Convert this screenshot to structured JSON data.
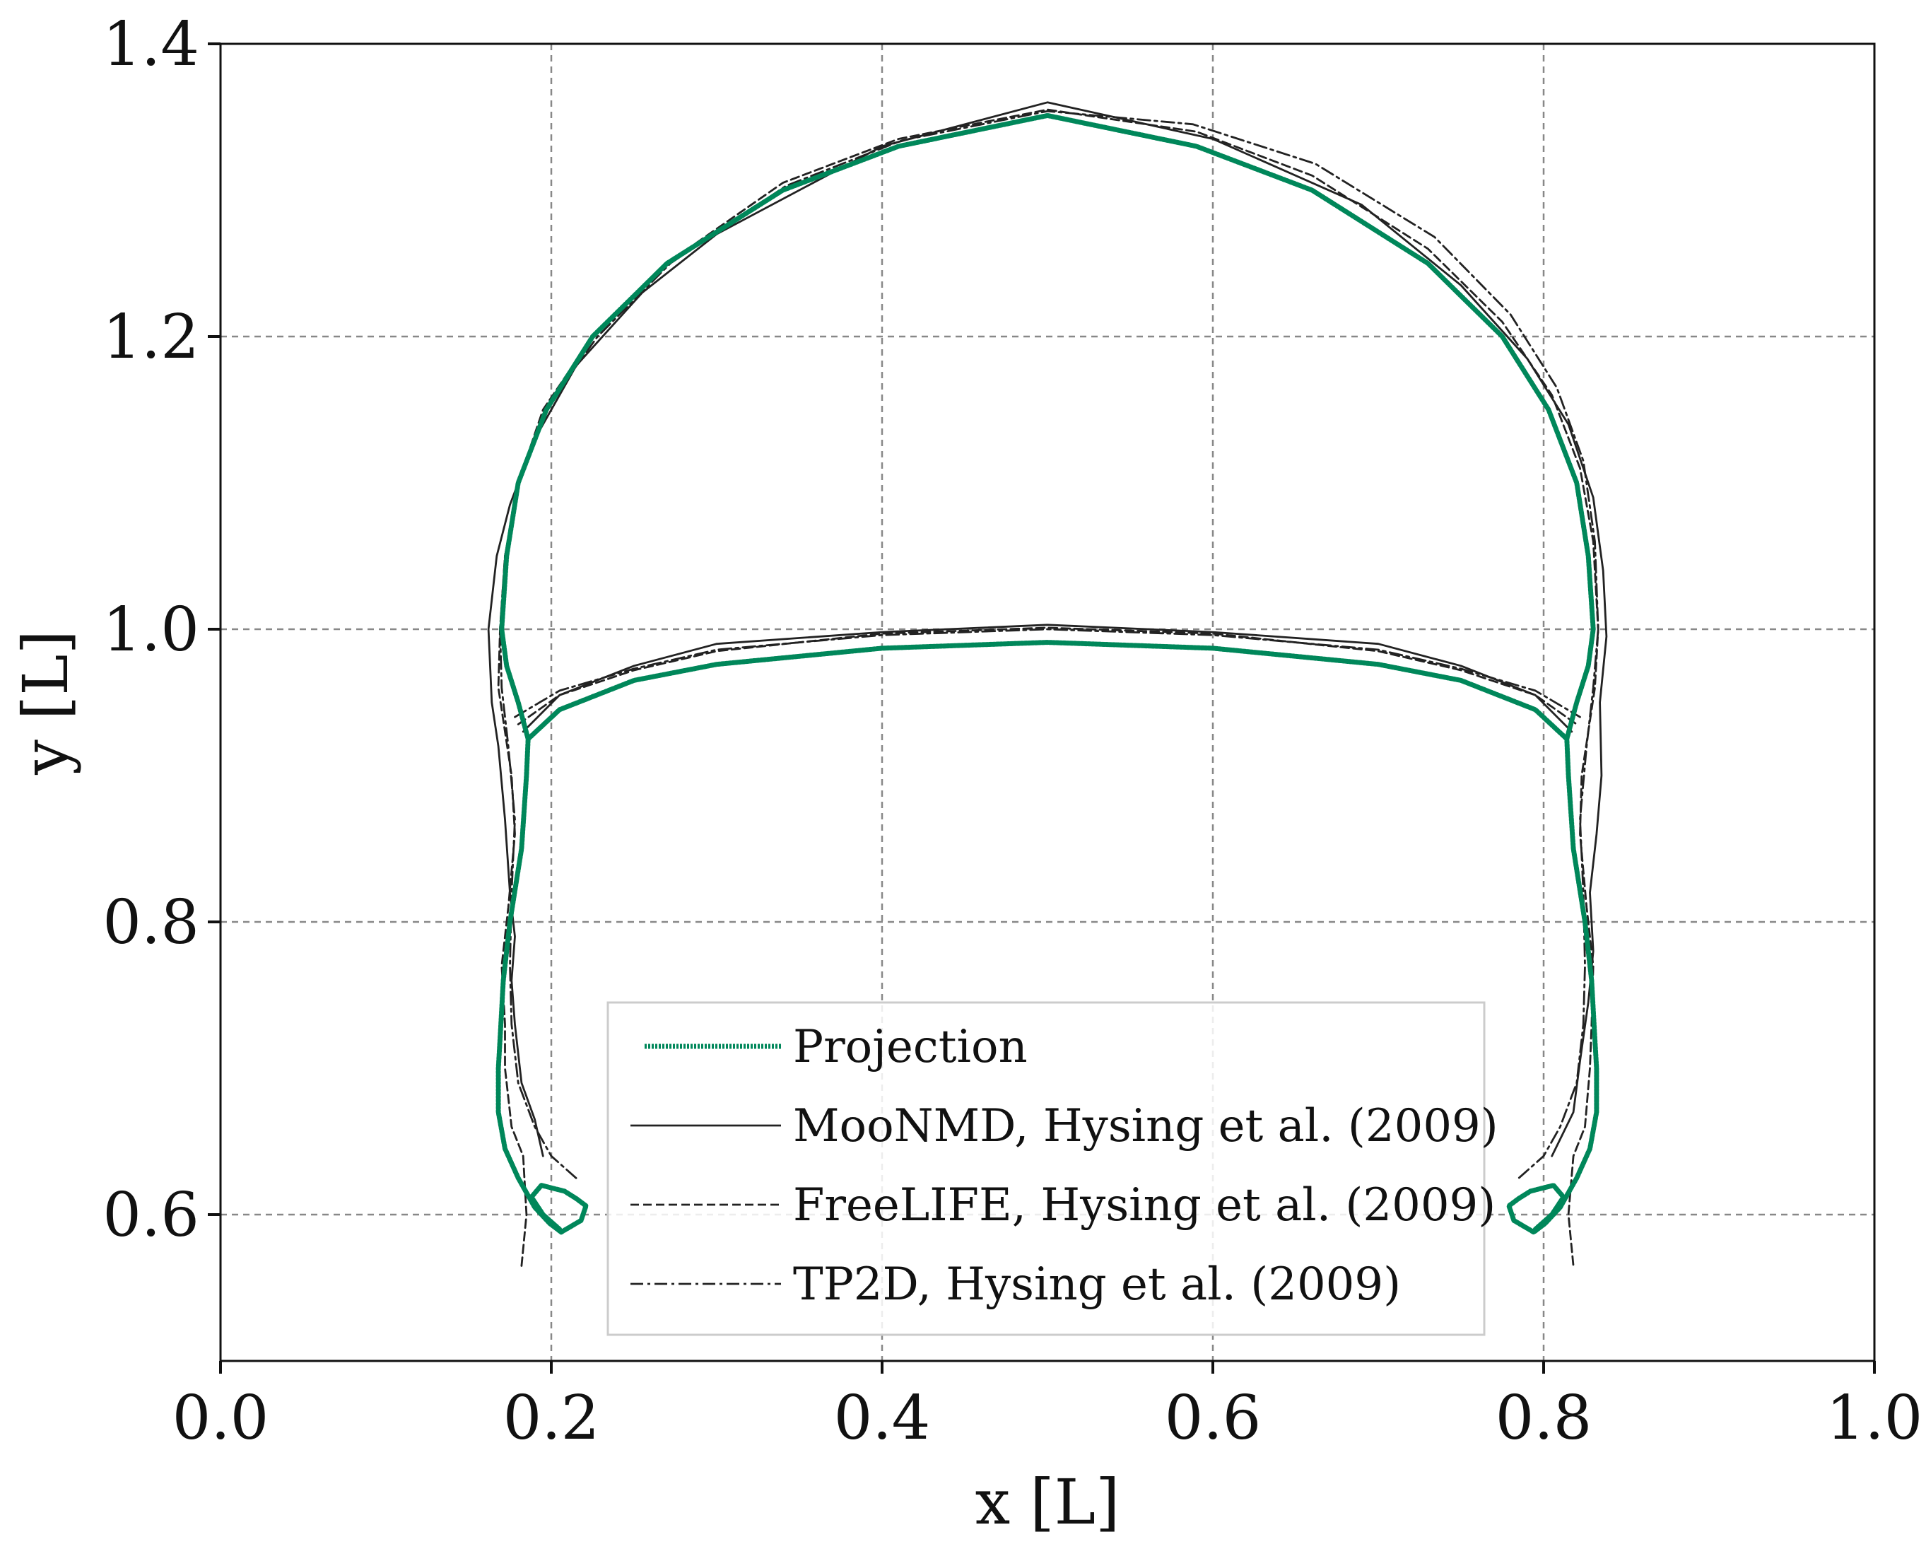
{
  "chart_data": {
    "type": "line",
    "title": "",
    "xlabel": "x [L]",
    "ylabel": "y [L]",
    "xlim": [
      0.0,
      1.0
    ],
    "ylim": [
      0.5,
      1.4
    ],
    "xticks": [
      0.0,
      0.2,
      0.4,
      0.6,
      0.8,
      1.0
    ],
    "xtick_labels": [
      "0.0",
      "0.2",
      "0.4",
      "0.6",
      "0.8",
      "1.0"
    ],
    "yticks": [
      0.6,
      0.8,
      1.0,
      1.2,
      1.4
    ],
    "ytick_labels": [
      "0.6",
      "0.8",
      "1.0",
      "1.2",
      "1.4"
    ],
    "grid": true,
    "legend_position": "bottom-center",
    "colors": {
      "projection": "#00875a",
      "reference": "#222222",
      "grid": "#888888"
    },
    "series": [
      {
        "name": "Projection",
        "style": "thick-dotted",
        "points": [
          [
            0.205,
            0.59
          ],
          [
            0.195,
            0.6
          ],
          [
            0.188,
            0.612
          ],
          [
            0.194,
            0.62
          ],
          [
            0.208,
            0.616
          ],
          [
            0.215,
            0.611
          ],
          [
            0.221,
            0.606
          ],
          [
            0.218,
            0.596
          ],
          [
            0.206,
            0.588
          ],
          [
            0.199,
            0.594
          ],
          [
            0.19,
            0.605
          ],
          [
            0.18,
            0.625
          ],
          [
            0.172,
            0.645
          ],
          [
            0.168,
            0.67
          ],
          [
            0.168,
            0.7
          ],
          [
            0.169,
            0.72
          ],
          [
            0.171,
            0.76
          ],
          [
            0.175,
            0.8
          ],
          [
            0.182,
            0.85
          ],
          [
            0.185,
            0.9
          ],
          [
            0.186,
            0.925
          ],
          [
            0.18,
            0.95
          ],
          [
            0.173,
            0.975
          ],
          [
            0.17,
            1.0
          ],
          [
            0.173,
            1.05
          ],
          [
            0.18,
            1.1
          ],
          [
            0.197,
            1.15
          ],
          [
            0.225,
            1.2
          ],
          [
            0.27,
            1.25
          ],
          [
            0.34,
            1.3
          ],
          [
            0.41,
            1.33
          ],
          [
            0.5,
            1.351
          ],
          [
            0.59,
            1.33
          ],
          [
            0.66,
            1.3
          ],
          [
            0.73,
            1.25
          ],
          [
            0.775,
            1.2
          ],
          [
            0.803,
            1.15
          ],
          [
            0.82,
            1.1
          ],
          [
            0.827,
            1.05
          ],
          [
            0.83,
            1.0
          ],
          [
            0.827,
            0.975
          ],
          [
            0.82,
            0.95
          ],
          [
            0.814,
            0.925
          ],
          [
            0.815,
            0.9
          ],
          [
            0.818,
            0.85
          ],
          [
            0.825,
            0.8
          ],
          [
            0.829,
            0.76
          ],
          [
            0.831,
            0.72
          ],
          [
            0.832,
            0.7
          ],
          [
            0.832,
            0.67
          ],
          [
            0.828,
            0.645
          ],
          [
            0.82,
            0.625
          ],
          [
            0.81,
            0.605
          ],
          [
            0.801,
            0.594
          ],
          [
            0.794,
            0.588
          ],
          [
            0.782,
            0.596
          ],
          [
            0.779,
            0.606
          ],
          [
            0.785,
            0.611
          ],
          [
            0.792,
            0.616
          ],
          [
            0.806,
            0.62
          ],
          [
            0.812,
            0.612
          ],
          [
            0.805,
            0.6
          ],
          [
            0.795,
            0.59
          ]
        ],
        "inner": [
          [
            0.186,
            0.925
          ],
          [
            0.205,
            0.945
          ],
          [
            0.25,
            0.965
          ],
          [
            0.3,
            0.976
          ],
          [
            0.4,
            0.987
          ],
          [
            0.5,
            0.991
          ],
          [
            0.6,
            0.987
          ],
          [
            0.7,
            0.976
          ],
          [
            0.75,
            0.965
          ],
          [
            0.795,
            0.945
          ],
          [
            0.814,
            0.925
          ]
        ]
      },
      {
        "name": "MooNMD, Hysing et al. (2009)",
        "style": "solid",
        "points": [
          [
            0.195,
            0.64
          ],
          [
            0.19,
            0.665
          ],
          [
            0.182,
            0.69
          ],
          [
            0.178,
            0.73
          ],
          [
            0.176,
            0.76
          ],
          [
            0.178,
            0.79
          ],
          [
            0.175,
            0.82
          ],
          [
            0.172,
            0.87
          ],
          [
            0.168,
            0.92
          ],
          [
            0.164,
            0.95
          ],
          [
            0.162,
            1.0
          ],
          [
            0.167,
            1.05
          ],
          [
            0.175,
            1.085
          ],
          [
            0.19,
            1.13
          ],
          [
            0.215,
            1.18
          ],
          [
            0.255,
            1.23
          ],
          [
            0.3,
            1.27
          ],
          [
            0.4,
            1.33
          ],
          [
            0.5,
            1.36
          ],
          [
            0.6,
            1.335
          ],
          [
            0.69,
            1.29
          ],
          [
            0.75,
            1.235
          ],
          [
            0.79,
            1.185
          ],
          [
            0.815,
            1.14
          ],
          [
            0.83,
            1.09
          ],
          [
            0.836,
            1.04
          ],
          [
            0.838,
            0.995
          ],
          [
            0.834,
            0.95
          ],
          [
            0.835,
            0.9
          ],
          [
            0.832,
            0.86
          ],
          [
            0.828,
            0.82
          ],
          [
            0.83,
            0.78
          ],
          [
            0.827,
            0.745
          ],
          [
            0.822,
            0.705
          ],
          [
            0.818,
            0.67
          ],
          [
            0.805,
            0.64
          ]
        ],
        "inner": [
          [
            0.183,
            0.93
          ],
          [
            0.205,
            0.955
          ],
          [
            0.25,
            0.975
          ],
          [
            0.3,
            0.99
          ],
          [
            0.4,
            0.998
          ],
          [
            0.5,
            1.003
          ],
          [
            0.6,
            0.998
          ],
          [
            0.7,
            0.99
          ],
          [
            0.75,
            0.975
          ],
          [
            0.795,
            0.955
          ],
          [
            0.817,
            0.93
          ]
        ]
      },
      {
        "name": "FreeLIFE, Hysing et al. (2009)",
        "style": "dashed",
        "points": [
          [
            0.182,
            0.565
          ],
          [
            0.185,
            0.6
          ],
          [
            0.183,
            0.64
          ],
          [
            0.176,
            0.66
          ],
          [
            0.172,
            0.7
          ],
          [
            0.172,
            0.73
          ],
          [
            0.17,
            0.77
          ],
          [
            0.174,
            0.81
          ],
          [
            0.178,
            0.86
          ],
          [
            0.176,
            0.9
          ],
          [
            0.172,
            0.93
          ],
          [
            0.168,
            0.96
          ],
          [
            0.169,
            1.0
          ],
          [
            0.172,
            1.05
          ],
          [
            0.18,
            1.1
          ],
          [
            0.195,
            1.15
          ],
          [
            0.225,
            1.2
          ],
          [
            0.27,
            1.25
          ],
          [
            0.34,
            1.305
          ],
          [
            0.41,
            1.335
          ],
          [
            0.5,
            1.355
          ],
          [
            0.59,
            1.34
          ],
          [
            0.66,
            1.31
          ],
          [
            0.73,
            1.26
          ],
          [
            0.775,
            1.21
          ],
          [
            0.805,
            1.16
          ],
          [
            0.822,
            1.11
          ],
          [
            0.83,
            1.06
          ],
          [
            0.833,
            1.0
          ],
          [
            0.831,
            0.96
          ],
          [
            0.827,
            0.93
          ],
          [
            0.823,
            0.9
          ],
          [
            0.822,
            0.86
          ],
          [
            0.826,
            0.81
          ],
          [
            0.83,
            0.77
          ],
          [
            0.829,
            0.73
          ],
          [
            0.828,
            0.7
          ],
          [
            0.825,
            0.66
          ],
          [
            0.818,
            0.64
          ],
          [
            0.815,
            0.6
          ],
          [
            0.818,
            0.565
          ]
        ],
        "inner": [
          [
            0.18,
            0.935
          ],
          [
            0.205,
            0.955
          ],
          [
            0.25,
            0.972
          ],
          [
            0.3,
            0.985
          ],
          [
            0.4,
            0.997
          ],
          [
            0.5,
            1.001
          ],
          [
            0.6,
            0.997
          ],
          [
            0.7,
            0.985
          ],
          [
            0.75,
            0.972
          ],
          [
            0.795,
            0.955
          ],
          [
            0.82,
            0.935
          ]
        ]
      },
      {
        "name": "TP2D, Hysing et al. (2009)",
        "style": "dashdot",
        "points": [
          [
            0.215,
            0.625
          ],
          [
            0.2,
            0.64
          ],
          [
            0.19,
            0.66
          ],
          [
            0.18,
            0.69
          ],
          [
            0.176,
            0.73
          ],
          [
            0.175,
            0.77
          ],
          [
            0.176,
            0.82
          ],
          [
            0.178,
            0.87
          ],
          [
            0.174,
            0.92
          ],
          [
            0.17,
            0.96
          ],
          [
            0.169,
            1.0
          ],
          [
            0.172,
            1.05
          ],
          [
            0.18,
            1.1
          ],
          [
            0.196,
            1.15
          ],
          [
            0.228,
            1.2
          ],
          [
            0.272,
            1.25
          ],
          [
            0.342,
            1.303
          ],
          [
            0.412,
            1.334
          ],
          [
            0.5,
            1.354
          ],
          [
            0.588,
            1.345
          ],
          [
            0.662,
            1.318
          ],
          [
            0.734,
            1.268
          ],
          [
            0.78,
            1.215
          ],
          [
            0.808,
            1.165
          ],
          [
            0.824,
            1.115
          ],
          [
            0.831,
            1.06
          ],
          [
            0.833,
            1.0
          ],
          [
            0.83,
            0.96
          ],
          [
            0.826,
            0.92
          ],
          [
            0.822,
            0.87
          ],
          [
            0.824,
            0.82
          ],
          [
            0.825,
            0.77
          ],
          [
            0.824,
            0.73
          ],
          [
            0.82,
            0.69
          ],
          [
            0.81,
            0.66
          ],
          [
            0.8,
            0.64
          ],
          [
            0.785,
            0.625
          ]
        ],
        "inner": [
          [
            0.178,
            0.94
          ],
          [
            0.205,
            0.958
          ],
          [
            0.25,
            0.973
          ],
          [
            0.3,
            0.986
          ],
          [
            0.4,
            0.996
          ],
          [
            0.5,
            1.0
          ],
          [
            0.6,
            0.996
          ],
          [
            0.7,
            0.986
          ],
          [
            0.75,
            0.973
          ],
          [
            0.795,
            0.958
          ],
          [
            0.822,
            0.94
          ]
        ]
      }
    ]
  }
}
